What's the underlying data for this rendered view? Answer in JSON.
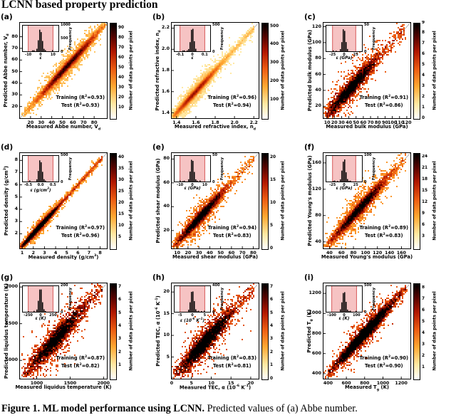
{
  "page": {
    "heading": "LCNN based property prediction",
    "caption_bold": "Figure 1. ML model performance using LCNN.",
    "caption_rest": " Predicted values of (a) Abbe number."
  },
  "chart_data": [
    {
      "type": "heatmap",
      "letter": "(a)",
      "xlabel": "Measured Abbe number, V_{d}",
      "ylabel": "Predicted Abbe number, V_{d}",
      "training": "Training (R^{2}=0.93)",
      "test": "Test (R^{2}=0.93)",
      "range": [
        10,
        92
      ],
      "xticks": [
        "20",
        "30",
        "40",
        "50",
        "60",
        "70",
        "80"
      ],
      "yticks": [
        "20",
        "30",
        "40",
        "50",
        "60",
        "70",
        "80"
      ],
      "colorbar": {
        "label": "Number of data points per pixel",
        "vmin": 0,
        "vmax": 95,
        "ticks": [
          "10",
          "20",
          "30",
          "40",
          "50",
          "60",
          "70",
          "80",
          "90"
        ]
      },
      "inset": {
        "xlabel": "ε",
        "ylabel": "Frequency",
        "xrange": [
          -15,
          15
        ],
        "band": [
          -10,
          10
        ],
        "xticks": [
          "-10",
          "0",
          "10"
        ],
        "yticks": [
          "0",
          "500",
          "1000"
        ]
      },
      "cloud": {
        "n": 9000,
        "center": 0.55,
        "sigma": 0.17,
        "spread": 0.022,
        "uni": 0.06
      }
    },
    {
      "type": "heatmap",
      "letter": "(b)",
      "xlabel": "Measured refractive index, n_{d}",
      "ylabel": "Predicted refractive index, n_{d}",
      "training": "Training (R^{2}=0.96)",
      "test": "Test (R^{2}=0.94)",
      "range": [
        1.35,
        2.25
      ],
      "xticks": [
        "1.4",
        "1.6",
        "1.8",
        "2.0",
        "2.2"
      ],
      "yticks": [
        "1.4",
        "1.6",
        "1.8",
        "2.0",
        "2.2"
      ],
      "colorbar": {
        "label": "Number of data points per pixel",
        "vmin": 0,
        "vmax": 520,
        "ticks": [
          "100",
          "200",
          "300",
          "400",
          "500"
        ]
      },
      "inset": {
        "xlabel": "ε",
        "ylabel": "Frequency",
        "xrange": [
          -0.15,
          0.15
        ],
        "band": [
          -0.1,
          0.1
        ],
        "xticks": [
          "-0.1",
          "0",
          "0.1"
        ],
        "yticks": [
          "0",
          "500"
        ]
      },
      "cloud": {
        "n": 15000,
        "center": 0.27,
        "sigma": 0.13,
        "spread": 0.018,
        "uni": 0.1
      }
    },
    {
      "type": "heatmap",
      "letter": "(c)",
      "xlabel": "Measured bulk modulus (GPa)",
      "ylabel": "Predicted bulk modulus (GPa)",
      "training": "Training (R^{2}=0.91)",
      "test": "Test (R^{2}=0.86)",
      "range": [
        5,
        125
      ],
      "xticks": [
        "10",
        "20",
        "30",
        "40",
        "50",
        "60",
        "70",
        "80",
        "90",
        "100",
        "110",
        "120"
      ],
      "yticks": [
        "20",
        "40",
        "60",
        "80",
        "100",
        "120"
      ],
      "colorbar": {
        "label": "Number of data points per pixel",
        "vmin": 0,
        "vmax": 9,
        "ticks": [
          "0",
          "1",
          "2",
          "3",
          "4",
          "5",
          "6",
          "7",
          "8",
          "9"
        ]
      },
      "inset": {
        "xlabel": "ε (GPa)",
        "ylabel": "Frequency",
        "xrange": [
          -40,
          40
        ],
        "band": [
          -25,
          25
        ],
        "xticks": [
          "-25",
          "0",
          "25"
        ],
        "yticks": [
          "0",
          "50"
        ]
      },
      "cloud": {
        "n": 3200,
        "center": 0.32,
        "sigma": 0.15,
        "spread": 0.045,
        "uni": 0.12
      }
    },
    {
      "type": "heatmap",
      "letter": "(d)",
      "xlabel": "Measured density (g/cm^{3})",
      "ylabel": "Predicted density (g/cm^{3})",
      "training": "Training (R^{2}=0.97)",
      "test": "Test (R^{2}=0.96)",
      "range": [
        0.8,
        8.6
      ],
      "xticks": [
        "1",
        "2",
        "3",
        "4",
        "5",
        "6",
        "7",
        "8"
      ],
      "yticks": [
        "2",
        "3",
        "4",
        "5",
        "6",
        "7",
        "8"
      ],
      "colorbar": {
        "label": "Number of data points per pixel",
        "vmin": 0,
        "vmax": 42,
        "ticks": [
          "5",
          "10",
          "15",
          "20",
          "25",
          "30",
          "35",
          "40"
        ]
      },
      "inset": {
        "xlabel": "ε (g/cm^{3})",
        "ylabel": "Frequency",
        "xrange": [
          -0.75,
          0.75
        ],
        "band": [
          -0.5,
          0.5
        ],
        "xticks": [
          "-0.5",
          "0.0",
          "0.5"
        ],
        "yticks": [
          "0",
          "500"
        ]
      },
      "cloud": {
        "n": 9000,
        "center": 0.22,
        "sigma": 0.1,
        "spread": 0.013,
        "uni": 0.14
      }
    },
    {
      "type": "heatmap",
      "letter": "(e)",
      "xlabel": "Measured shear modulus (GPa)",
      "ylabel": "Predicted shear modulus (GPa)",
      "training": "Training (R^{2}=0.94)",
      "test": "Test (R^{2}=0.83)",
      "range": [
        5,
        85
      ],
      "xticks": [
        "10",
        "20",
        "30",
        "40",
        "50",
        "60",
        "70",
        "80"
      ],
      "yticks": [
        "20",
        "40",
        "60",
        "80"
      ],
      "colorbar": {
        "label": "Number of data points per pixel",
        "vmin": 0,
        "vmax": 21,
        "ticks": [
          "0",
          "5",
          "10",
          "15",
          "20"
        ]
      },
      "inset": {
        "xlabel": "ε (GPa)",
        "ylabel": "Frequency",
        "xrange": [
          -15,
          15
        ],
        "band": [
          -10,
          10
        ],
        "xticks": [
          "-10",
          "0",
          "10"
        ],
        "yticks": [
          "0",
          "50"
        ]
      },
      "cloud": {
        "n": 4500,
        "center": 0.33,
        "sigma": 0.14,
        "spread": 0.03,
        "uni": 0.1
      }
    },
    {
      "type": "heatmap",
      "letter": "(f)",
      "xlabel": "Measured Young's modulus (GPa)",
      "ylabel": "Predicted Young's modulus (GPa)",
      "training": "Training (R^{2}=0.89)",
      "test": "Test (R^{2}=0.83)",
      "range": [
        30,
        175
      ],
      "xticks": [
        "40",
        "60",
        "80",
        "100",
        "120",
        "140",
        "160"
      ],
      "yticks": [
        "40",
        "80",
        "120",
        "160"
      ],
      "colorbar": {
        "label": "Number of data points per pixel",
        "vmin": 0,
        "vmax": 25,
        "ticks": [
          "3",
          "6",
          "9",
          "12",
          "15",
          "18",
          "21",
          "24"
        ]
      },
      "inset": {
        "xlabel": "ε (GPa)",
        "ylabel": "Frequency",
        "xrange": [
          -40,
          40
        ],
        "band": [
          -25,
          25
        ],
        "xticks": [
          "-25",
          "0",
          "25"
        ],
        "yticks": [
          "0",
          "100"
        ]
      },
      "cloud": {
        "n": 5500,
        "center": 0.42,
        "sigma": 0.15,
        "spread": 0.032,
        "uni": 0.1
      }
    },
    {
      "type": "heatmap",
      "letter": "(g)",
      "xlabel": "Measured liquidus temperature (K)",
      "ylabel": "Predicted liquidus temperature (K)",
      "training": "Training (R^{2}=0.87)",
      "test": "Test (R^{2}=0.82)",
      "range": [
        750,
        2050
      ],
      "xticks": [
        "1000",
        "1500",
        "2000"
      ],
      "yticks": [
        "1000",
        "1500",
        "2000"
      ],
      "colorbar": {
        "label": "Number of data points per pixel",
        "vmin": 0,
        "vmax": 7.3,
        "ticks": [
          "1",
          "2",
          "3",
          "4",
          "5",
          "6",
          "7"
        ]
      },
      "inset": {
        "xlabel": "ε (K)",
        "ylabel": "Frequency",
        "xrange": [
          -375,
          375
        ],
        "band": [
          -250,
          250
        ],
        "xticks": [
          "-250",
          "0",
          "250"
        ],
        "yticks": [
          "0",
          "200"
        ]
      },
      "cloud": {
        "n": 3200,
        "center": 0.42,
        "sigma": 0.16,
        "spread": 0.055,
        "uni": 0.15
      }
    },
    {
      "type": "heatmap",
      "letter": "(h)",
      "xlabel": "Measured TEC, α (10^{-6} K^{-1})",
      "ylabel": "Predicted TEC, α  (10^{-6} K^{-1})",
      "training": "Training (R^{2}=0.83)",
      "test": "Test (R^{2}=0.81)",
      "range": [
        0,
        22
      ],
      "xticks": [
        "0",
        "5",
        "10",
        "15",
        "20"
      ],
      "yticks": [
        "5",
        "10",
        "15",
        "20"
      ],
      "colorbar": {
        "label": "Number of data points per pixel",
        "vmin": 0,
        "vmax": 7.3,
        "ticks": [
          "0",
          "1",
          "2",
          "3",
          "4",
          "5",
          "6",
          "7"
        ]
      },
      "inset": {
        "xlabel": "ε (10^{-6} K^{-1})",
        "ylabel": "Frequency",
        "xrange": [
          -7.5,
          7.5
        ],
        "band": [
          -5,
          5
        ],
        "xticks": [
          "-5",
          "0",
          "5"
        ],
        "yticks": [
          "0",
          "400"
        ]
      },
      "cloud": {
        "n": 3800,
        "center": 0.38,
        "sigma": 0.15,
        "spread": 0.05,
        "uni": 0.12
      }
    },
    {
      "type": "heatmap",
      "letter": "(i)",
      "xlabel": "Measured T_{g} (K)",
      "ylabel": "Predicted T_{g} (K)",
      "training": "Training (R^{2}=0.90)",
      "test": "Test (R^{2}=0.90)",
      "range": [
        350,
        1300
      ],
      "xticks": [
        "400",
        "600",
        "800",
        "1000",
        "1200"
      ],
      "yticks": [
        "400",
        "600",
        "800",
        "1000",
        "1200"
      ],
      "colorbar": {
        "label": "Number of data points per pixel",
        "vmin": 0,
        "vmax": 8.4,
        "ticks": [
          "1",
          "2",
          "3",
          "4",
          "5",
          "6",
          "7",
          "8"
        ]
      },
      "inset": {
        "xlabel": "ε (K)",
        "ylabel": "Frequency",
        "xrange": [
          -150,
          150
        ],
        "band": [
          -100,
          100
        ],
        "xticks": [
          "-100",
          "0",
          "100"
        ],
        "yticks": [
          "0",
          "500"
        ]
      },
      "cloud": {
        "n": 5500,
        "center": 0.47,
        "sigma": 0.15,
        "spread": 0.032,
        "uni": 0.1
      }
    }
  ]
}
